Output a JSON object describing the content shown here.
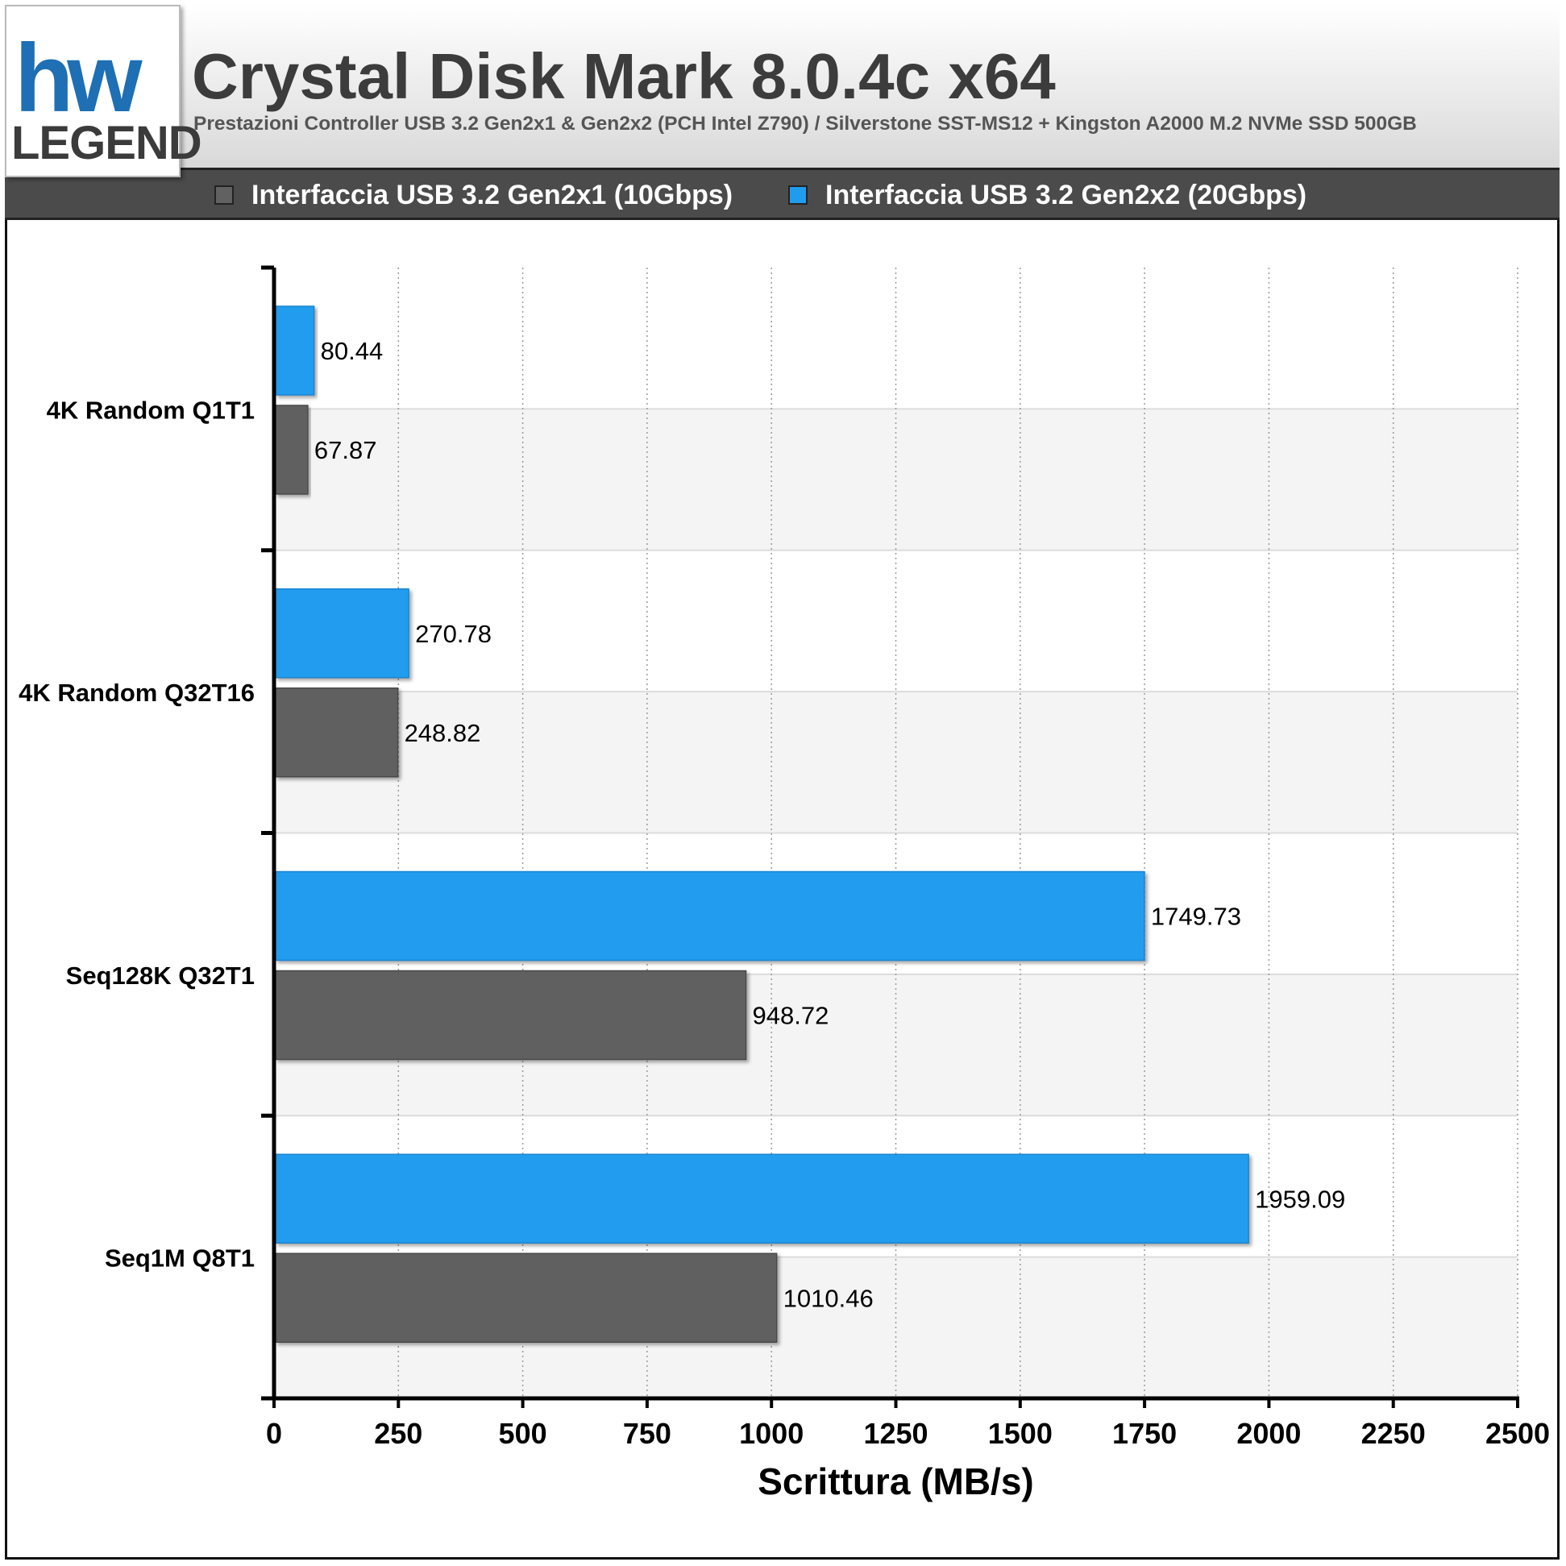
{
  "header": {
    "logo_text": "hw LEGEND",
    "title": "Crystal Disk Mark 8.0.4c x64",
    "subtitle": "Prestazioni Controller USB 3.2 Gen2x1 & Gen2x2 (PCH Intel Z790) / Silverstone SST-MS12 + Kingston A2000 M.2 NVMe SSD 500GB"
  },
  "legend": [
    {
      "label": "Interfaccia USB 3.2 Gen2x1 (10Gbps)",
      "color": "#616161"
    },
    {
      "label": "Interfaccia USB 3.2 Gen2x2 (20Gbps)",
      "color": "#209cee"
    }
  ],
  "chart_data": {
    "type": "bar",
    "orientation": "horizontal",
    "categories": [
      "4K Random Q1T1",
      "4K Random Q32T16",
      "Seq128K Q32T1",
      "Seq1M Q8T1"
    ],
    "series": [
      {
        "name": "Interfaccia USB 3.2 Gen2x2 (20Gbps)",
        "color": "#209cee",
        "values": [
          80.44,
          270.78,
          1749.73,
          1959.09
        ],
        "labels": [
          "80.44",
          "270.78",
          "1749.73",
          "1959.09"
        ]
      },
      {
        "name": "Interfaccia USB 3.2 Gen2x1 (10Gbps)",
        "color": "#616161",
        "values": [
          67.87,
          248.82,
          948.72,
          1010.46
        ],
        "labels": [
          "67.87",
          "248.82",
          "948.72",
          "1010.46"
        ]
      }
    ],
    "xlabel": "Scrittura (MB/s)",
    "ylabel": "",
    "xlim": [
      0,
      2500
    ],
    "xticks": [
      "0",
      "250",
      "500",
      "750",
      "1000",
      "1250",
      "1500",
      "1750",
      "2000",
      "2250",
      "2500"
    ],
    "grid": "vertical dotted",
    "legend_position": "top"
  }
}
